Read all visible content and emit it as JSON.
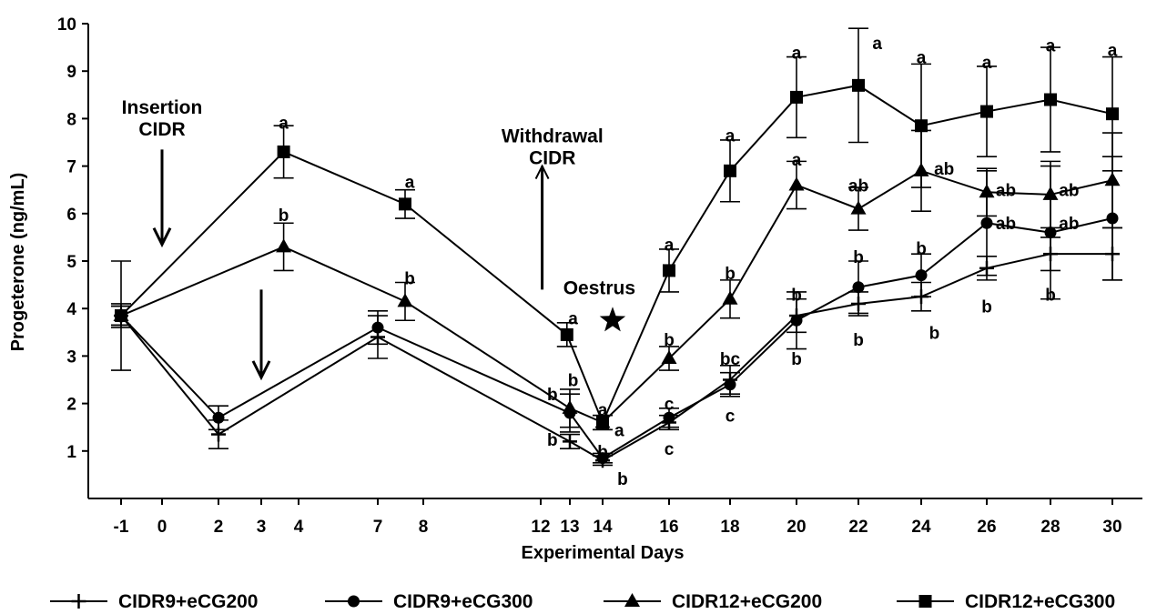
{
  "chart_data": {
    "type": "line",
    "title": "",
    "xlabel": "Experimental Days",
    "ylabel": "Progeterone (ng/mL)",
    "ylim": [
      0,
      10
    ],
    "y_ticks": [
      1,
      2,
      3,
      4,
      5,
      6,
      7,
      8,
      9,
      10
    ],
    "x_ticks": [
      "-1",
      "0",
      "2",
      "3",
      "4",
      "7",
      "8",
      "12",
      "13",
      "14",
      "16",
      "18",
      "20",
      "22",
      "24",
      "26",
      "28",
      "30"
    ],
    "grid": false,
    "legend_position": "bottom",
    "series": [
      {
        "name": "CIDR9+eCG200",
        "marker": "plus",
        "points": [
          {
            "x": -1,
            "y": 3.85,
            "err": 0.2
          },
          {
            "x": 2,
            "y": 1.35,
            "err": 0.3
          },
          {
            "x": 7,
            "y": 3.4,
            "err": 0.45
          },
          {
            "x": 13,
            "y": 1.2,
            "err": 0.15
          },
          {
            "x": 14,
            "y": 0.8,
            "err": 0.1
          },
          {
            "x": 16,
            "y": 1.6,
            "err": 0.15
          },
          {
            "x": 18,
            "y": 2.5,
            "err": 0.3
          },
          {
            "x": 20,
            "y": 3.85,
            "err": 0.35
          },
          {
            "x": 22,
            "y": 4.1,
            "err": 0.25
          },
          {
            "x": 24,
            "y": 4.25,
            "err": 0.3
          },
          {
            "x": 26,
            "y": 4.85,
            "err": 0.25
          },
          {
            "x": 28,
            "y": 5.15,
            "err": 0.35
          },
          {
            "x": 30,
            "y": 5.15,
            "err": 0.55
          }
        ]
      },
      {
        "name": "CIDR9+eCG300",
        "marker": "circle",
        "points": [
          {
            "x": -1,
            "y": 3.85,
            "err": 0.2
          },
          {
            "x": 2,
            "y": 1.7,
            "err": 0.25
          },
          {
            "x": 7,
            "y": 3.6,
            "err": 0.35
          },
          {
            "x": 13,
            "y": 1.8,
            "err": 0.4
          },
          {
            "x": 14,
            "y": 0.85,
            "err": 0.1
          },
          {
            "x": 16,
            "y": 1.7,
            "err": 0.2
          },
          {
            "x": 18,
            "y": 2.4,
            "err": 0.25
          },
          {
            "x": 20,
            "y": 3.75,
            "err": 0.6
          },
          {
            "x": 22,
            "y": 4.45,
            "err": 0.55
          },
          {
            "x": 24,
            "y": 4.7,
            "err": 0.45
          },
          {
            "x": 26,
            "y": 5.8,
            "err": 1.1
          },
          {
            "x": 28,
            "y": 5.6,
            "err": 1.4
          },
          {
            "x": 30,
            "y": 5.9,
            "err": 1.3
          }
        ]
      },
      {
        "name": "CIDR12+eCG200",
        "marker": "triangle",
        "points": [
          {
            "x": -1,
            "y": 3.85,
            "err": 0.25
          },
          {
            "x": 3.6,
            "y": 5.3,
            "err": 0.5
          },
          {
            "x": 7.6,
            "y": 4.15,
            "err": 0.4
          },
          {
            "x": 13,
            "y": 1.9,
            "err": 0.4
          },
          {
            "x": 14,
            "y": 1.6,
            "err": 0.15
          },
          {
            "x": 16,
            "y": 2.95,
            "err": 0.25
          },
          {
            "x": 18,
            "y": 4.2,
            "err": 0.4
          },
          {
            "x": 20,
            "y": 6.6,
            "err": 0.5
          },
          {
            "x": 22,
            "y": 6.1,
            "err": 0.45
          },
          {
            "x": 24,
            "y": 6.9,
            "err": 0.85
          },
          {
            "x": 26,
            "y": 6.45,
            "err": 0.5
          },
          {
            "x": 28,
            "y": 6.4,
            "err": 0.7
          },
          {
            "x": 30,
            "y": 6.7,
            "err": 1.0
          }
        ]
      },
      {
        "name": "CIDR12+eCG300",
        "marker": "square",
        "points": [
          {
            "x": -1,
            "y": 3.85,
            "err": 1.15
          },
          {
            "x": 3.6,
            "y": 7.3,
            "err": 0.55
          },
          {
            "x": 7.6,
            "y": 6.2,
            "err": 0.3
          },
          {
            "x": 12.9,
            "y": 3.45,
            "err": 0.25
          },
          {
            "x": 14,
            "y": 1.6,
            "err": 0.15
          },
          {
            "x": 16,
            "y": 4.8,
            "err": 0.45
          },
          {
            "x": 18,
            "y": 6.9,
            "err": 0.65
          },
          {
            "x": 20,
            "y": 8.45,
            "err": 0.85
          },
          {
            "x": 22,
            "y": 8.7,
            "err": 1.2
          },
          {
            "x": 24,
            "y": 7.85,
            "err": 1.3
          },
          {
            "x": 26,
            "y": 8.15,
            "err": 0.95
          },
          {
            "x": 28,
            "y": 8.4,
            "err": 1.1
          },
          {
            "x": 30,
            "y": 8.1,
            "err": 1.2
          }
        ]
      }
    ],
    "significance_labels": [
      {
        "x": 3.6,
        "y": 7.92,
        "text": "a"
      },
      {
        "x": 3.6,
        "y": 5.98,
        "text": "b"
      },
      {
        "x": 7.7,
        "y": 6.68,
        "text": "a"
      },
      {
        "x": 7.7,
        "y": 4.65,
        "text": "b"
      },
      {
        "x": 13.1,
        "y": 3.8,
        "text": "a"
      },
      {
        "x": 12.4,
        "y": 2.2,
        "text": "b"
      },
      {
        "x": 13.1,
        "y": 2.5,
        "text": "b"
      },
      {
        "x": 12.4,
        "y": 1.25,
        "text": "b"
      },
      {
        "x": 14,
        "y": 1.88,
        "text": "a"
      },
      {
        "x": 14.5,
        "y": 1.45,
        "text": "a"
      },
      {
        "x": 14,
        "y": 1.0,
        "text": "b"
      },
      {
        "x": 14.6,
        "y": 0.42,
        "text": "b"
      },
      {
        "x": 16,
        "y": 5.35,
        "text": "a"
      },
      {
        "x": 16,
        "y": 3.35,
        "text": "b"
      },
      {
        "x": 16,
        "y": 2.0,
        "text": "c"
      },
      {
        "x": 16,
        "y": 1.05,
        "text": "c"
      },
      {
        "x": 18,
        "y": 7.65,
        "text": "a"
      },
      {
        "x": 18,
        "y": 4.75,
        "text": "b"
      },
      {
        "x": 18,
        "y": 2.95,
        "text": "bc"
      },
      {
        "x": 18,
        "y": 1.75,
        "text": "c"
      },
      {
        "x": 20,
        "y": 9.4,
        "text": "a"
      },
      {
        "x": 20,
        "y": 7.15,
        "text": "a"
      },
      {
        "x": 20,
        "y": 4.3,
        "text": "b"
      },
      {
        "x": 20,
        "y": 2.95,
        "text": "b"
      },
      {
        "x": 22.6,
        "y": 9.6,
        "text": "a"
      },
      {
        "x": 22,
        "y": 6.6,
        "text": "ab"
      },
      {
        "x": 22,
        "y": 5.1,
        "text": "b"
      },
      {
        "x": 22,
        "y": 3.35,
        "text": "b"
      },
      {
        "x": 24,
        "y": 9.3,
        "text": "a"
      },
      {
        "x": 24.7,
        "y": 6.95,
        "text": "ab"
      },
      {
        "x": 24,
        "y": 5.28,
        "text": "b"
      },
      {
        "x": 24.4,
        "y": 3.5,
        "text": "b"
      },
      {
        "x": 26,
        "y": 9.2,
        "text": "a"
      },
      {
        "x": 26.6,
        "y": 6.5,
        "text": "ab"
      },
      {
        "x": 26.6,
        "y": 5.8,
        "text": "ab"
      },
      {
        "x": 26,
        "y": 4.05,
        "text": "b"
      },
      {
        "x": 28,
        "y": 9.55,
        "text": "a"
      },
      {
        "x": 28.6,
        "y": 6.5,
        "text": "ab"
      },
      {
        "x": 28.6,
        "y": 5.8,
        "text": "ab"
      },
      {
        "x": 28,
        "y": 4.3,
        "text": "b"
      },
      {
        "x": 30,
        "y": 9.45,
        "text": "a"
      }
    ],
    "annotations": [
      {
        "id": "insertion",
        "lines": [
          "Insertion",
          "CIDR"
        ],
        "x": 0,
        "y": 8.1
      },
      {
        "id": "withdrawal",
        "lines": [
          "Withdrawal",
          "CIDR"
        ],
        "x": 12.4,
        "y": 7.5
      },
      {
        "id": "oestrus",
        "lines": [
          "Oestrus"
        ],
        "x": 13.9,
        "y": 4.3
      }
    ]
  }
}
